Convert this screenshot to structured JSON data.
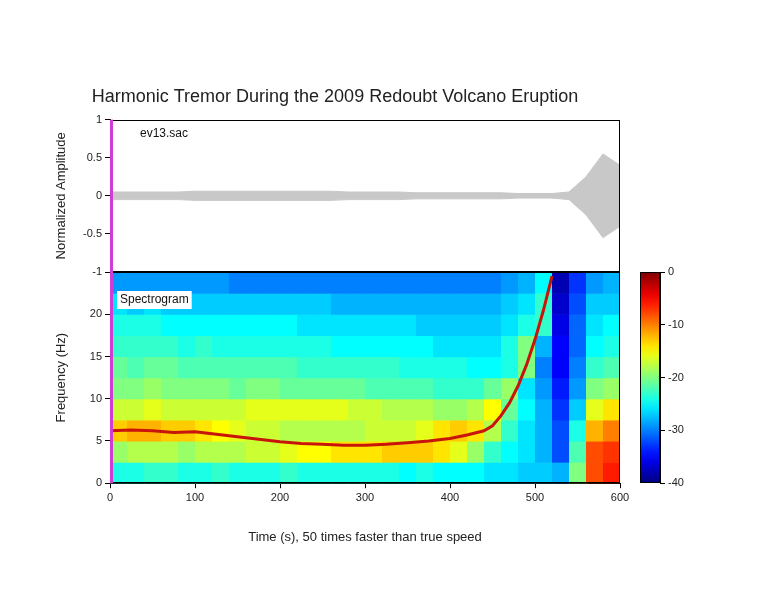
{
  "chart_data": [
    {
      "type": "line",
      "title": "Harmonic Tremor During the 2009 Redoubt Volcano Eruption",
      "annotation": "ev13.sac",
      "ylabel": "Normalized Amplitude",
      "x": [
        0,
        20,
        40,
        60,
        80,
        100,
        120,
        140,
        160,
        180,
        200,
        220,
        240,
        260,
        280,
        300,
        320,
        340,
        360,
        380,
        400,
        420,
        440,
        460,
        480,
        500,
        520,
        540,
        560,
        580,
        600
      ],
      "series": [
        {
          "color": "#c8c8c8",
          "values": [
            0.05,
            0.05,
            0.05,
            0.05,
            0.05,
            0.06,
            0.06,
            0.06,
            0.06,
            0.06,
            0.06,
            0.06,
            0.06,
            0.06,
            0.05,
            0.05,
            0.05,
            0.05,
            0.04,
            0.04,
            0.04,
            0.04,
            0.04,
            0.04,
            0.03,
            0.03,
            0.03,
            0.05,
            0.25,
            0.55,
            0.4
          ]
        },
        {
          "color": "#c8c8c8",
          "values": [
            -0.05,
            -0.05,
            -0.05,
            -0.05,
            -0.05,
            -0.06,
            -0.06,
            -0.06,
            -0.06,
            -0.06,
            -0.06,
            -0.06,
            -0.06,
            -0.06,
            -0.05,
            -0.05,
            -0.05,
            -0.05,
            -0.04,
            -0.04,
            -0.04,
            -0.04,
            -0.04,
            -0.04,
            -0.03,
            -0.03,
            -0.03,
            -0.05,
            -0.25,
            -0.55,
            -0.4
          ]
        }
      ],
      "xlim": [
        0,
        600
      ],
      "ylim": [
        -1,
        1
      ],
      "yticks": [
        -1,
        -0.5,
        0,
        0.5,
        1
      ],
      "grid": false,
      "tick_labels": "y"
    },
    {
      "type": "heatmap",
      "annotation": "Spectrogram",
      "xlabel": "Time (s), 50 times faster than true speed",
      "ylabel": "Frequency (Hz)",
      "xlim": [
        0,
        600
      ],
      "xticks": [
        0,
        100,
        200,
        300,
        400,
        500,
        600
      ],
      "ylim": [
        0,
        25
      ],
      "yticks": [
        0,
        5,
        10,
        15,
        20
      ],
      "x_bins": [
        0,
        20,
        40,
        60,
        80,
        100,
        120,
        140,
        160,
        180,
        200,
        220,
        240,
        260,
        280,
        300,
        320,
        340,
        360,
        380,
        400,
        420,
        440,
        460,
        480,
        500,
        520,
        540,
        560,
        580,
        600
      ],
      "y_bins": [
        0,
        2.5,
        5,
        7.5,
        10,
        12.5,
        15,
        17.5,
        20,
        22.5,
        25
      ],
      "cells": [
        [
          -24,
          -24,
          -23,
          -23,
          -24,
          -24,
          -23,
          -24,
          -24,
          -24,
          -23,
          -24,
          -24,
          -24,
          -24,
          -24,
          -24,
          -25,
          -24,
          -25,
          -25,
          -25,
          -26,
          -26,
          -27,
          -27,
          -28,
          -20,
          -8,
          -6
        ],
        [
          -19,
          -18,
          -18,
          -18,
          -19,
          -18,
          -18,
          -18,
          -17,
          -17,
          -16,
          -15,
          -15,
          -14,
          -14,
          -14,
          -13,
          -13,
          -13,
          -14,
          -16,
          -19,
          -23,
          -25,
          -26,
          -28,
          -32,
          -22,
          -8,
          -7
        ],
        [
          -13,
          -12,
          -12,
          -13,
          -13,
          -14,
          -15,
          -16,
          -17,
          -17,
          -18,
          -18,
          -18,
          -18,
          -18,
          -17,
          -17,
          -17,
          -16,
          -14,
          -13,
          -14,
          -18,
          -23,
          -26,
          -28,
          -32,
          -24,
          -12,
          -10
        ],
        [
          -17,
          -17,
          -16,
          -17,
          -17,
          -17,
          -17,
          -17,
          -16,
          -16,
          -16,
          -16,
          -16,
          -16,
          -17,
          -17,
          -18,
          -18,
          -18,
          -19,
          -19,
          -18,
          -15,
          -21,
          -25,
          -28,
          -33,
          -27,
          -16,
          -14
        ],
        [
          -20,
          -20,
          -19,
          -20,
          -20,
          -20,
          -20,
          -21,
          -20,
          -20,
          -21,
          -21,
          -21,
          -21,
          -21,
          -22,
          -22,
          -22,
          -22,
          -23,
          -23,
          -23,
          -21,
          -19,
          -26,
          -29,
          -34,
          -29,
          -20,
          -19
        ],
        [
          -21,
          -22,
          -21,
          -21,
          -22,
          -22,
          -22,
          -22,
          -22,
          -22,
          -22,
          -23,
          -23,
          -23,
          -23,
          -23,
          -23,
          -24,
          -24,
          -24,
          -24,
          -25,
          -25,
          -24,
          -20,
          -30,
          -35,
          -30,
          -23,
          -22
        ],
        [
          -23,
          -23,
          -23,
          -23,
          -24,
          -23,
          -24,
          -24,
          -24,
          -24,
          -24,
          -24,
          -24,
          -25,
          -25,
          -25,
          -25,
          -25,
          -25,
          -26,
          -26,
          -26,
          -26,
          -24,
          -20,
          -28,
          -35,
          -31,
          -25,
          -24
        ],
        [
          -24,
          -24,
          -24,
          -25,
          -25,
          -25,
          -25,
          -25,
          -25,
          -25,
          -25,
          -26,
          -26,
          -26,
          -26,
          -26,
          -26,
          -26,
          -27,
          -27,
          -27,
          -27,
          -27,
          -26,
          -24,
          -23,
          -36,
          -31,
          -26,
          -25
        ],
        [
          -26,
          -27,
          -26,
          -27,
          -27,
          -27,
          -27,
          -27,
          -27,
          -27,
          -27,
          -27,
          -27,
          -28,
          -28,
          -28,
          -28,
          -28,
          -28,
          -28,
          -28,
          -28,
          -28,
          -27,
          -26,
          -23,
          -37,
          -32,
          -27,
          -27
        ],
        [
          -29,
          -29,
          -29,
          -29,
          -29,
          -29,
          -29,
          -30,
          -30,
          -30,
          -30,
          -30,
          -30,
          -30,
          -30,
          -30,
          -30,
          -30,
          -30,
          -30,
          -30,
          -30,
          -30,
          -29,
          -28,
          -25,
          -38,
          -33,
          -29,
          -28
        ]
      ],
      "color_range": [
        -40,
        0
      ],
      "color_ticks": [
        -40,
        -30,
        -20,
        -10,
        0
      ],
      "series": [
        {
          "color": "#c8140a",
          "x": [
            0,
            25,
            50,
            75,
            100,
            125,
            150,
            175,
            200,
            225,
            250,
            275,
            300,
            325,
            350,
            375,
            400,
            420,
            440,
            450,
            460,
            470,
            480,
            490,
            500,
            510,
            520
          ],
          "values": [
            6.2,
            6.3,
            6.2,
            6.0,
            6.1,
            5.8,
            5.5,
            5.2,
            4.9,
            4.7,
            4.6,
            4.5,
            4.5,
            4.6,
            4.8,
            5.0,
            5.3,
            5.7,
            6.2,
            6.8,
            8.0,
            9.5,
            11.5,
            14.0,
            17.0,
            20.5,
            24.5
          ]
        }
      ],
      "grid": false
    }
  ]
}
